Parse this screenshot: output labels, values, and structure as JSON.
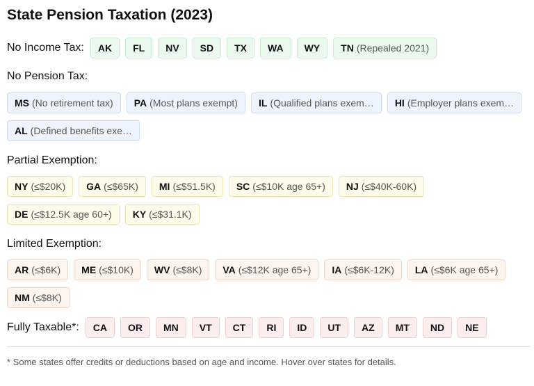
{
  "title": "State Pension Taxation (2023)",
  "sections": [
    {
      "label": "No Income Tax:",
      "states": [
        {
          "code": "AK"
        },
        {
          "code": "FL"
        },
        {
          "code": "NV"
        },
        {
          "code": "SD"
        },
        {
          "code": "TX"
        },
        {
          "code": "WA"
        },
        {
          "code": "WY"
        },
        {
          "code": "TN",
          "note": "(Repealed 2021)"
        }
      ]
    },
    {
      "label": "No Pension Tax:",
      "states": [
        {
          "code": "MS",
          "note": "(No retirement tax)"
        },
        {
          "code": "PA",
          "note": "(Most plans exempt)"
        },
        {
          "code": "IL",
          "note": "(Qualified plans exem…"
        },
        {
          "code": "HI",
          "note": "(Employer plans exem…"
        },
        {
          "code": "AL",
          "note": "(Defined benefits exe…"
        }
      ]
    },
    {
      "label": "Partial Exemption:",
      "states": [
        {
          "code": "NY",
          "note": "(≤$20K)"
        },
        {
          "code": "GA",
          "note": "(≤$65K)"
        },
        {
          "code": "MI",
          "note": "(≤$51.5K)"
        },
        {
          "code": "SC",
          "note": "(≤$10K age 65+)"
        },
        {
          "code": "NJ",
          "note": "(≤$40K-60K)"
        },
        {
          "code": "DE",
          "note": "(≤$12.5K age 60+)"
        },
        {
          "code": "KY",
          "note": "(≤$31.1K)"
        }
      ]
    },
    {
      "label": "Limited Exemption:",
      "states": [
        {
          "code": "AR",
          "note": "(≤$6K)"
        },
        {
          "code": "ME",
          "note": "(≤$10K)"
        },
        {
          "code": "WV",
          "note": "(≤$8K)"
        },
        {
          "code": "VA",
          "note": "(≤$12K age 65+)"
        },
        {
          "code": "IA",
          "note": "(≤$6K-12K)"
        },
        {
          "code": "LA",
          "note": "(≤$6K age 65+)"
        },
        {
          "code": "NM",
          "note": "(≤$8K)"
        }
      ]
    },
    {
      "label": "Fully Taxable*:",
      "states": [
        {
          "code": "CA"
        },
        {
          "code": "OR"
        },
        {
          "code": "MN"
        },
        {
          "code": "VT"
        },
        {
          "code": "CT"
        },
        {
          "code": "RI"
        },
        {
          "code": "ID"
        },
        {
          "code": "UT"
        },
        {
          "code": "AZ"
        },
        {
          "code": "MT"
        },
        {
          "code": "ND"
        },
        {
          "code": "NE"
        }
      ]
    }
  ],
  "footnote": "* Some states offer credits or deductions based on age and income. Hover over states for details."
}
